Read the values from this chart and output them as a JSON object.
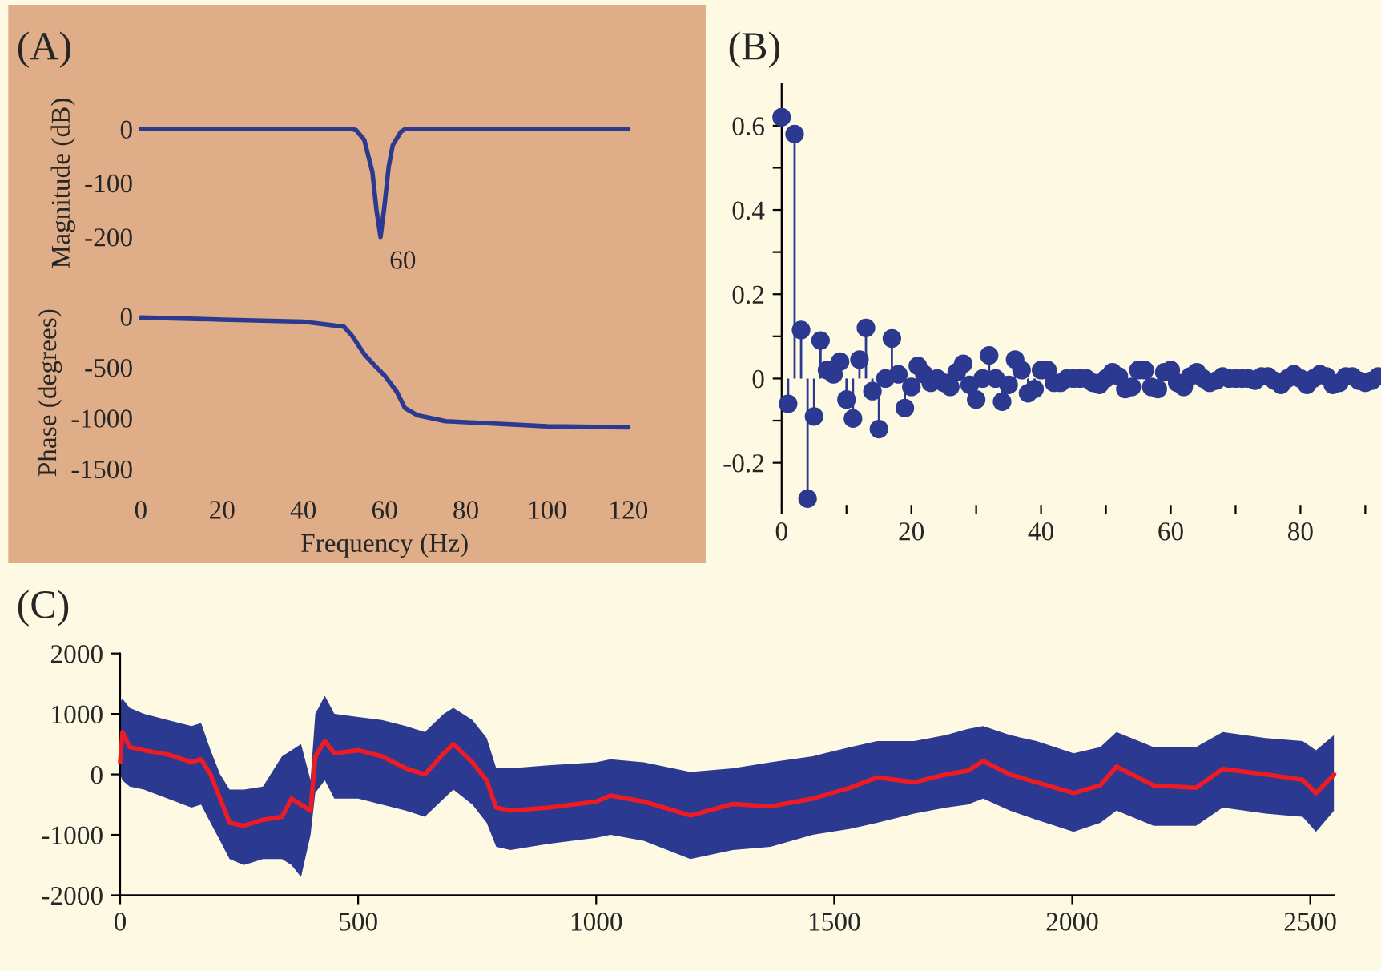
{
  "chart_data": [
    {
      "type": "line",
      "title": "(A)",
      "ylabel": "Magnitude (dB)",
      "x": [
        0,
        52,
        53,
        55,
        57,
        58,
        59,
        60,
        61,
        62,
        64,
        65,
        120
      ],
      "series": [
        {
          "color": "#2b3990",
          "values": [
            0,
            0,
            -2,
            -20,
            -80,
            -150,
            -200,
            -140,
            -70,
            -30,
            -5,
            0,
            0
          ]
        }
      ],
      "annotations": [
        {
          "text": "60",
          "x": 59,
          "y": -200
        }
      ],
      "xlim": [
        0,
        120
      ],
      "ylim": [
        -200,
        0
      ],
      "yticks": [
        0,
        -100,
        -200
      ],
      "tick_labels": "y",
      "grid": false
    },
    {
      "type": "line",
      "ylabel": "Phase (degrees)",
      "xlabel": "Frequency (Hz)",
      "x": [
        0,
        20,
        40,
        50,
        52,
        55,
        58,
        60,
        63,
        65,
        68,
        75,
        85,
        100,
        120
      ],
      "series": [
        {
          "color": "#2b3990",
          "values": [
            -10,
            -30,
            -50,
            -100,
            -190,
            -370,
            -500,
            -580,
            -740,
            -900,
            -970,
            -1030,
            -1050,
            -1080,
            -1090
          ]
        }
      ],
      "xlim": [
        0,
        120
      ],
      "ylim": [
        -1500,
        0
      ],
      "xticks": [
        0,
        20,
        40,
        60,
        80,
        100,
        120
      ],
      "yticks": [
        0,
        -500,
        -1000,
        -1500
      ],
      "grid": false
    },
    {
      "type": "lollipop",
      "title": "(B)",
      "x": [
        0,
        1,
        2,
        3,
        4,
        5,
        6,
        7,
        8,
        9,
        10,
        11,
        12,
        13,
        14,
        15,
        16,
        17,
        18,
        19,
        20,
        21,
        22,
        23,
        24,
        25,
        26,
        27,
        28,
        29,
        30,
        31,
        32,
        33,
        34,
        35,
        36,
        37,
        38,
        39,
        40,
        41,
        42,
        43,
        44,
        45,
        46,
        47,
        48,
        49,
        50,
        51,
        52,
        53,
        54,
        55,
        56,
        57,
        58,
        59,
        60,
        61,
        62,
        63,
        64,
        65,
        66,
        67,
        68,
        69,
        70,
        71,
        72,
        73,
        74,
        75,
        76,
        77,
        78,
        79,
        80,
        81,
        82,
        83,
        84,
        85,
        86,
        87,
        88,
        89,
        90,
        91,
        92
      ],
      "series": [
        {
          "color": "#2b3990",
          "values": [
            0.62,
            -0.06,
            0.58,
            0.115,
            -0.285,
            -0.09,
            0.09,
            0.02,
            0.01,
            0.04,
            -0.05,
            -0.095,
            0.045,
            0.12,
            -0.03,
            -0.12,
            0.0,
            0.095,
            0.01,
            -0.07,
            -0.02,
            0.03,
            0.01,
            -0.01,
            0.0,
            -0.01,
            -0.02,
            0.015,
            0.035,
            -0.015,
            -0.05,
            0.0,
            0.055,
            0.0,
            -0.055,
            -0.015,
            0.045,
            0.02,
            -0.035,
            -0.025,
            0.02,
            0.02,
            -0.01,
            -0.01,
            0.0,
            0.0,
            0.0,
            0.0,
            -0.01,
            -0.015,
            0.0,
            0.015,
            0.005,
            -0.025,
            -0.02,
            0.02,
            0.02,
            -0.02,
            -0.025,
            0.015,
            0.02,
            -0.01,
            -0.02,
            0.005,
            0.015,
            0.0,
            -0.01,
            -0.005,
            0.005,
            0.0,
            0.0,
            0.0,
            0.0,
            -0.005,
            0.005,
            0.005,
            -0.005,
            -0.015,
            0.0,
            0.01,
            0.0,
            -0.015,
            0.0,
            0.01,
            0.005,
            -0.015,
            -0.01,
            0.005,
            0.005,
            -0.005,
            -0.01,
            -0.005,
            0.005
          ]
        }
      ],
      "marker": "circle",
      "xlim": [
        0,
        92
      ],
      "ylim": [
        -0.3,
        0.7
      ],
      "xticks": [
        {
          "value": 0,
          "label": "0"
        },
        {
          "value": 10,
          "label": null
        },
        {
          "value": 20,
          "label": "20"
        },
        {
          "value": 30,
          "label": null
        },
        {
          "value": 40,
          "label": "40"
        },
        {
          "value": 50,
          "label": null
        },
        {
          "value": 60,
          "label": "60"
        },
        {
          "value": 70,
          "label": null
        },
        {
          "value": 80,
          "label": "80"
        },
        {
          "value": 90,
          "label": null
        }
      ],
      "yticks": [
        {
          "value": -0.2,
          "label": "-0.2"
        },
        {
          "value": -0.1,
          "label": null
        },
        {
          "value": 0,
          "label": "0"
        },
        {
          "value": 0.1,
          "label": null
        },
        {
          "value": 0.2,
          "label": "0.2"
        },
        {
          "value": 0.3,
          "label": null
        },
        {
          "value": 0.4,
          "label": "0.4"
        },
        {
          "value": 0.5,
          "label": null
        },
        {
          "value": 0.6,
          "label": "0.6"
        }
      ],
      "grid": false
    },
    {
      "type": "line",
      "title": "(C)",
      "x": [
        0,
        5,
        20,
        50,
        100,
        150,
        170,
        190,
        210,
        230,
        260,
        300,
        340,
        360,
        380,
        400,
        410,
        430,
        450,
        500,
        550,
        600,
        640,
        680,
        700,
        740,
        770,
        790,
        820,
        900,
        1000,
        1030,
        1100,
        1198,
        1287,
        1366,
        1455,
        1534,
        1590,
        1668,
        1735,
        1780,
        1813,
        1869,
        1925,
        2003,
        2059,
        2093,
        2171,
        2260,
        2316,
        2406,
        2484,
        2512,
        2550
      ],
      "series": [
        {
          "color": "#2b3990",
          "values": [
            null,
            null,
            null,
            null,
            null,
            null,
            null,
            null,
            null,
            null,
            null,
            null,
            null,
            null,
            null,
            null,
            null,
            null,
            null,
            null,
            null,
            null,
            null,
            null,
            null,
            null,
            null,
            null,
            null,
            null,
            null,
            null,
            null,
            null,
            null,
            null,
            null,
            null,
            null,
            null,
            null,
            null,
            null,
            null,
            null,
            null,
            null,
            null,
            null,
            null,
            null,
            null,
            null,
            null,
            null
          ],
          "upper": [
            1200,
            1250,
            1100,
            1000,
            900,
            800,
            850,
            400,
            0,
            -250,
            -250,
            -200,
            300,
            400,
            500,
            -100,
            1000,
            1300,
            1000,
            950,
            900,
            800,
            700,
            1000,
            1100,
            900,
            600,
            100,
            100,
            150,
            200,
            250,
            200,
            40,
            100,
            200,
            300,
            450,
            550,
            550,
            650,
            750,
            800,
            650,
            550,
            350,
            450,
            700,
            450,
            450,
            700,
            600,
            550,
            400,
            650
          ],
          "lower": [
            0,
            -100,
            -200,
            -250,
            -400,
            -550,
            -500,
            -800,
            -1100,
            -1400,
            -1500,
            -1400,
            -1400,
            -1500,
            -1700,
            -1000,
            -300,
            -100,
            -400,
            -400,
            -500,
            -600,
            -700,
            -400,
            -250,
            -500,
            -800,
            -1200,
            -1250,
            -1150,
            -1050,
            -1000,
            -1100,
            -1400,
            -1250,
            -1200,
            -1000,
            -900,
            -800,
            -650,
            -550,
            -500,
            -400,
            -600,
            -750,
            -950,
            -800,
            -600,
            -850,
            -850,
            -550,
            -650,
            -700,
            -950,
            -600
          ]
        },
        {
          "color": "#ed1c24",
          "values": [
            200,
            700,
            450,
            400,
            330,
            200,
            250,
            0,
            -400,
            -800,
            -850,
            -750,
            -700,
            -400,
            -500,
            -600,
            300,
            550,
            350,
            400,
            300,
            100,
            0,
            350,
            500,
            200,
            -100,
            -550,
            -600,
            -550,
            -450,
            -350,
            -450,
            -680,
            -490,
            -530,
            -400,
            -220,
            -50,
            -130,
            0,
            60,
            220,
            0,
            -130,
            -310,
            -180,
            130,
            -180,
            -220,
            90,
            0,
            -90,
            -310,
            0
          ]
        }
      ],
      "xlim": [
        0,
        2550
      ],
      "ylim": [
        -2000,
        2000
      ],
      "xticks": [
        0,
        500,
        1000,
        1500,
        2000,
        2500
      ],
      "yticks": [
        -2000,
        -1000,
        0,
        1000,
        2000
      ],
      "grid": false
    }
  ]
}
